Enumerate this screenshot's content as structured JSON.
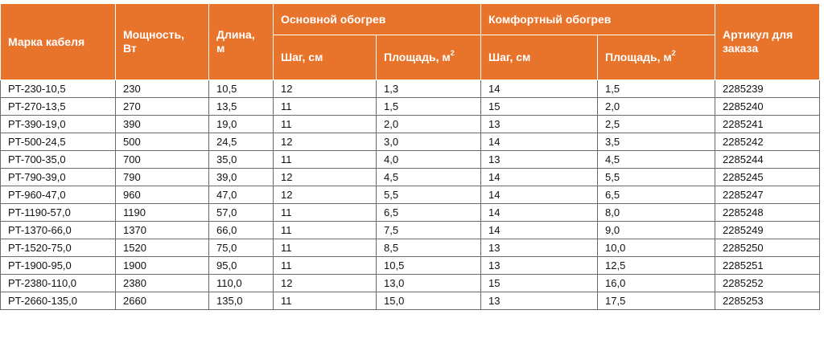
{
  "headers": {
    "brand": "Марка кабеля",
    "power_l1": "Мощность,",
    "power_l2": "Вт",
    "length_l1": "Длина,",
    "length_l2": "м",
    "main_heating": "Основной обогрев",
    "comfort_heating": "Комфортный обогрев",
    "step": "Шаг, см",
    "area": "Площадь, м",
    "area_sup": "2",
    "article_l1": "Артикул для",
    "article_l2": "заказа"
  },
  "rows": [
    [
      "PT-230-10,5",
      "230",
      "10,5",
      "12",
      "1,3",
      "14",
      "1,5",
      "2285239"
    ],
    [
      "PT-270-13,5",
      "270",
      "13,5",
      "11",
      "1,5",
      "15",
      "2,0",
      "2285240"
    ],
    [
      "PT-390-19,0",
      "390",
      "19,0",
      "11",
      "2,0",
      "13",
      "2,5",
      "2285241"
    ],
    [
      "PT-500-24,5",
      "500",
      "24,5",
      "12",
      "3,0",
      "14",
      "3,5",
      "2285242"
    ],
    [
      "PT-700-35,0",
      "700",
      "35,0",
      "11",
      "4,0",
      "13",
      "4,5",
      "2285244"
    ],
    [
      "PT-790-39,0",
      "790",
      "39,0",
      "12",
      "4,5",
      "14",
      "5,5",
      "2285245"
    ],
    [
      "PT-960-47,0",
      "960",
      "47,0",
      "12",
      "5,5",
      "14",
      "6,5",
      "2285247"
    ],
    [
      "PT-1190-57,0",
      "1190",
      "57,0",
      "11",
      "6,5",
      "14",
      "8,0",
      "2285248"
    ],
    [
      "PT-1370-66,0",
      "1370",
      "66,0",
      "11",
      "7,5",
      "14",
      "9,0",
      "2285249"
    ],
    [
      "PT-1520-75,0",
      "1520",
      "75,0",
      "11",
      "8,5",
      "13",
      "10,0",
      "2285250"
    ],
    [
      "PT-1900-95,0",
      "1900",
      "95,0",
      "11",
      "10,5",
      "13",
      "12,5",
      "2285251"
    ],
    [
      "PT-2380-110,0",
      "2380",
      "110,0",
      "12",
      "13,0",
      "15",
      "16,0",
      "2285252"
    ],
    [
      "PT-2660-135,0",
      "2660",
      "135,0",
      "11",
      "15,0",
      "13",
      "17,5",
      "2285253"
    ]
  ]
}
